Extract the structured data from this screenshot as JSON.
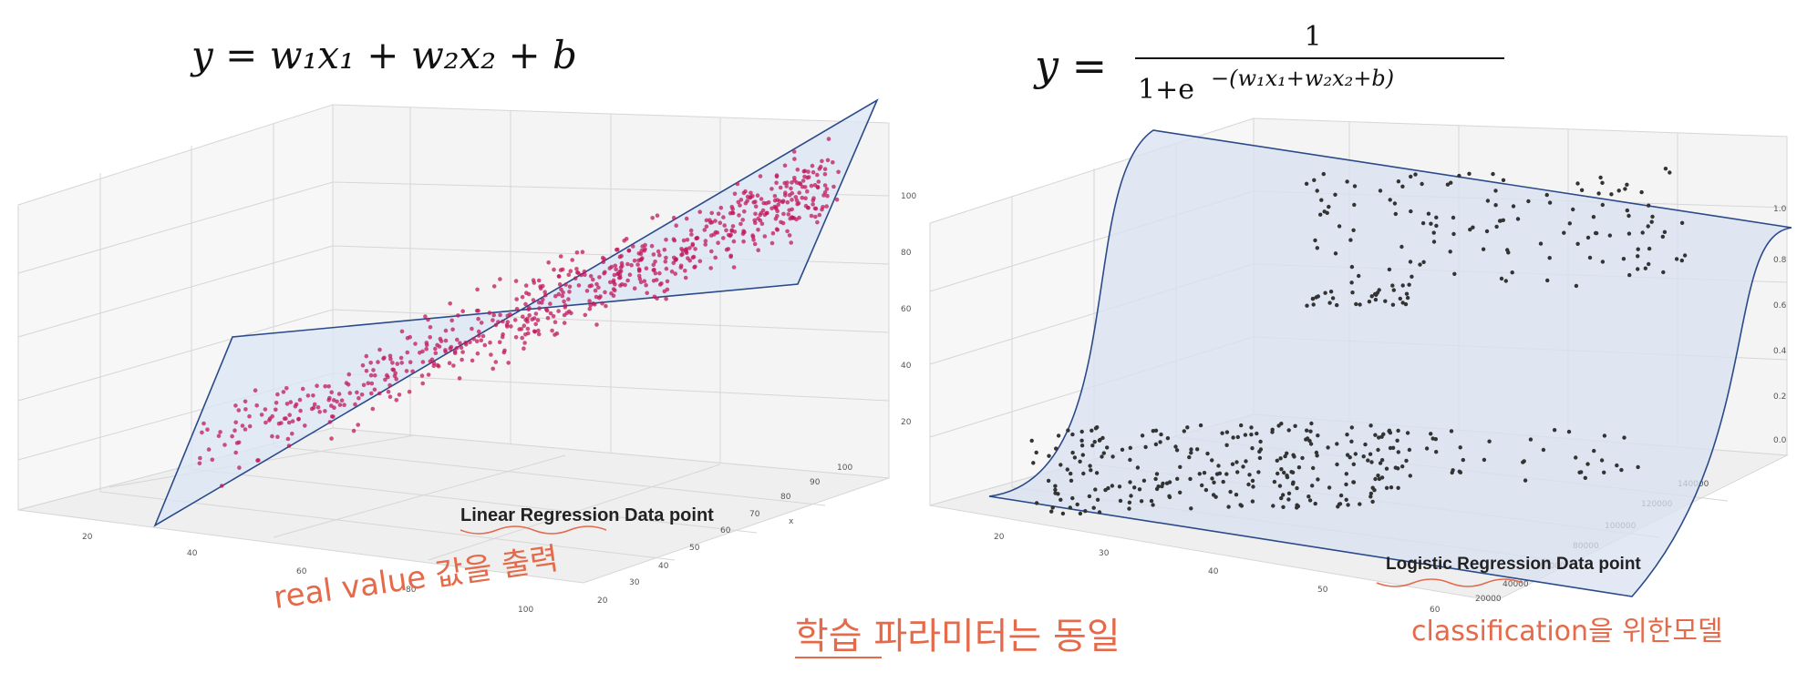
{
  "left_panel": {
    "equation": "y = w₁x₁ + w₂x₂ + b",
    "label": "Linear Regression Data point",
    "annotation": "real value 값을 출력",
    "z_ticks": [
      "20",
      "40",
      "60",
      "80",
      "100"
    ],
    "x_ticks": [
      "20",
      "40",
      "60",
      "80",
      "100"
    ],
    "y_ticks": [
      "20",
      "30",
      "40",
      "50",
      "60",
      "70",
      "80",
      "90",
      "100"
    ],
    "y_axis_letter": "x",
    "point_color": "#c2185b",
    "plane_color": "#dbe6f5"
  },
  "right_panel": {
    "equation_lhs": "y =",
    "equation_numerator": "1",
    "equation_denominator_base": "1+e",
    "equation_exponent": "−(w₁x₁+w₂x₂+b)",
    "label": "Logistic Regression Data point",
    "annotation": "classification을 위한모델",
    "z_ticks": [
      "0.0",
      "0.2",
      "0.4",
      "0.6",
      "0.8",
      "1.0"
    ],
    "x_ticks": [
      "20",
      "30",
      "40",
      "50",
      "60"
    ],
    "y_ticks": [
      "20000",
      "40000",
      "60000",
      "80000",
      "100000",
      "120000",
      "140000"
    ],
    "point_color": "#333333",
    "surface_color": "#d8e2f2"
  },
  "center_annotation": "학습 파라미터는 동일"
}
